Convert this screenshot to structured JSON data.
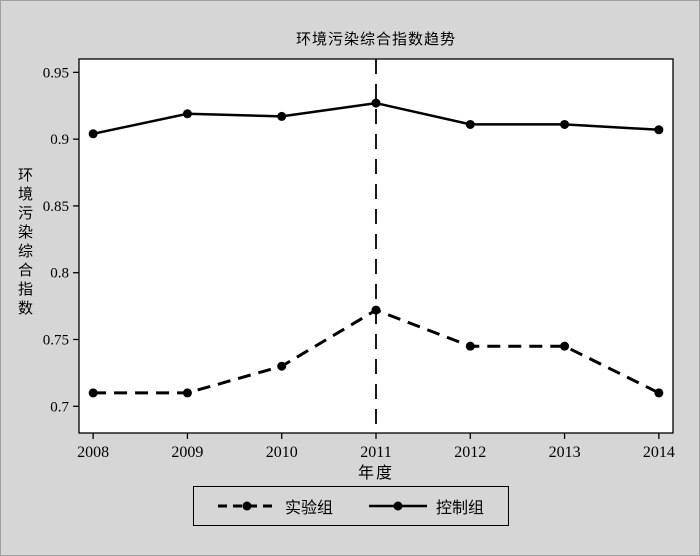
{
  "figure": {
    "background_color": "#d6d6d6",
    "plot_background_color": "#ffffff",
    "line_color": "#000000"
  },
  "chart_data": {
    "type": "line",
    "title": "环境污染综合指数趋势",
    "xlabel": "年度",
    "ylabel": "环境污染综合指数",
    "x": [
      2008,
      2009,
      2010,
      2011,
      2012,
      2013,
      2014
    ],
    "x_tick_labels": [
      "2008",
      "2009",
      "2010",
      "2011",
      "2012",
      "2013",
      "2014"
    ],
    "xlim": [
      2007.85,
      2014.15
    ],
    "y_ticks": [
      0.7,
      0.75,
      0.8,
      0.85,
      0.9,
      0.95
    ],
    "y_tick_labels": [
      "0.7",
      "0.75",
      "0.8",
      "0.85",
      "0.9",
      "0.95"
    ],
    "ylim": [
      0.68,
      0.96
    ],
    "grid": false,
    "vline_x": 2011,
    "legend_position": "bottom",
    "series": [
      {
        "name": "实验组",
        "style": "dashed",
        "values": [
          0.71,
          0.71,
          0.73,
          0.772,
          0.745,
          0.745,
          0.71
        ]
      },
      {
        "name": "控制组",
        "style": "solid",
        "values": [
          0.904,
          0.919,
          0.917,
          0.927,
          0.911,
          0.911,
          0.907
        ]
      }
    ]
  }
}
